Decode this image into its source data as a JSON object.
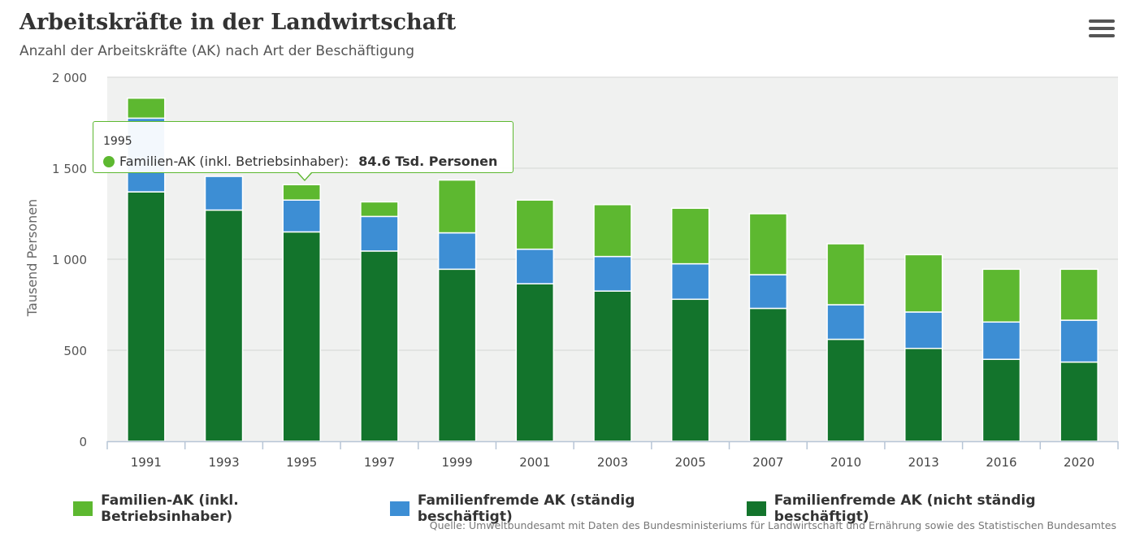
{
  "header": {
    "title": "Arbeitskräfte in der Landwirtschaft",
    "subtitle": "Anzahl der Arbeitskräfte (AK) nach Art der Beschäftigung"
  },
  "menu": {
    "icon": "hamburger-menu-icon"
  },
  "source": "Quelle: Umweltbundesamt mit Daten des Bundesministeriums für Landwirtschaft und Ernährung sowie des Statistischen Bundesamtes",
  "tooltip": {
    "year": "1995",
    "series_label": "Familien-AK (inkl. Betriebsinhaber):",
    "value_text": "84.6 Tsd. Personen"
  },
  "chart_data": {
    "type": "bar",
    "stacked": true,
    "categories": [
      "1991",
      "1993",
      "1995",
      "1997",
      "1999",
      "2001",
      "2003",
      "2005",
      "2007",
      "2010",
      "2013",
      "2016",
      "2020"
    ],
    "series": [
      {
        "name": "Familienfremde AK (nicht ständig beschäftigt)",
        "color": "#13742c",
        "values": [
          1370,
          1270,
          1150,
          1045,
          945,
          865,
          825,
          780,
          730,
          560,
          510,
          450,
          435
        ]
      },
      {
        "name": "Familienfremde AK (ständig beschäftigt)",
        "color": "#3d8ed4",
        "values": [
          405,
          185,
          175,
          190,
          200,
          190,
          190,
          195,
          185,
          190,
          200,
          205,
          230
        ]
      },
      {
        "name": "Familien-AK (inkl. Betriebsinhaber)",
        "color": "#5db830",
        "values": [
          110,
          0,
          84.6,
          80,
          290,
          270,
          285,
          305,
          335,
          335,
          315,
          290,
          280
        ]
      }
    ],
    "legend_order": [
      2,
      1,
      0
    ],
    "legend_position": "bottom",
    "ylabel": "Tausend Personen",
    "ylim": [
      0,
      2000
    ],
    "yticks": [
      0,
      500,
      1000,
      1500,
      2000
    ],
    "ytick_labels": [
      "0",
      "500",
      "1 000",
      "1 500",
      "2 000"
    ],
    "grid": true,
    "plot_background": "#f0f1f0"
  }
}
